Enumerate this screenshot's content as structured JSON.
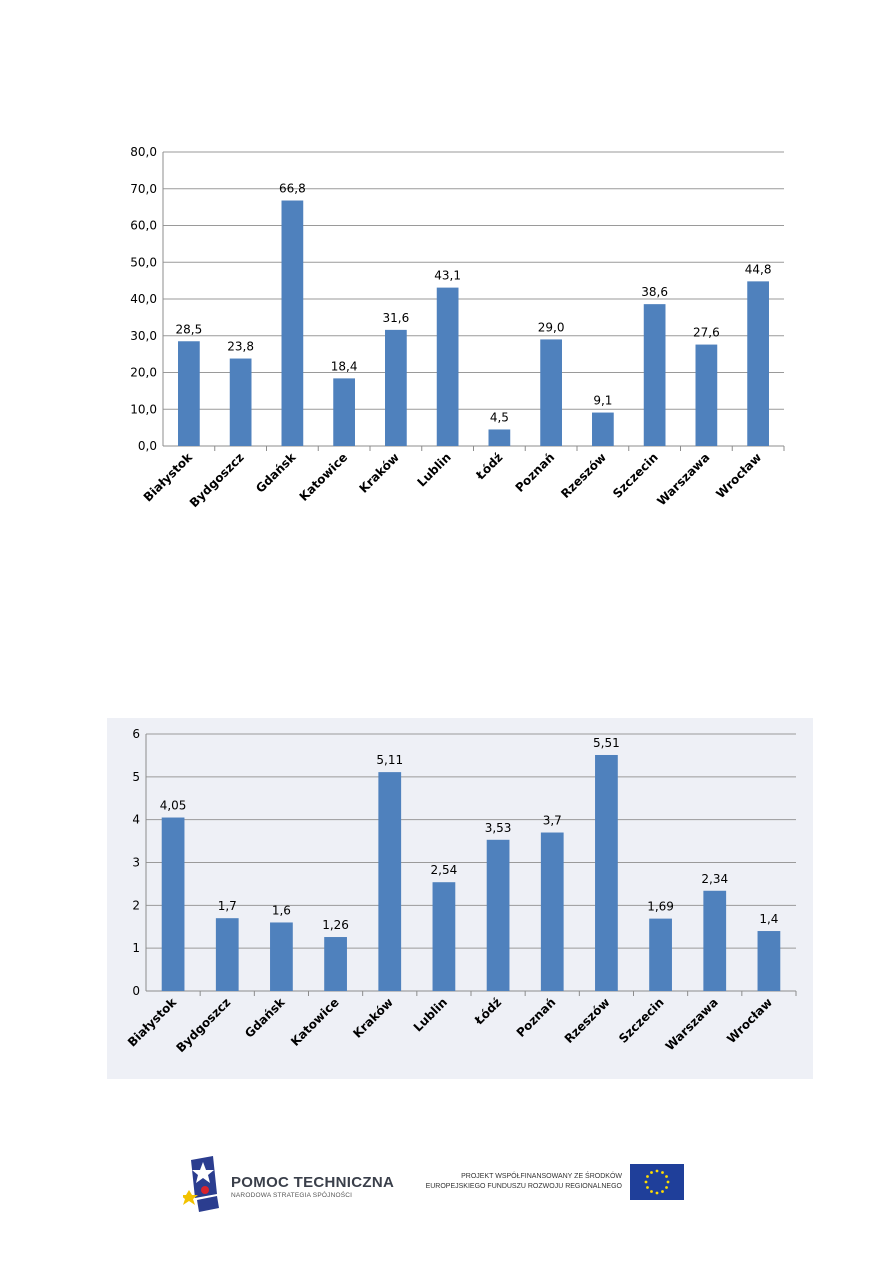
{
  "chart_data": [
    {
      "type": "bar",
      "categories": [
        "Białystok",
        "Bydgoszcz",
        "Gdańsk",
        "Katowice",
        "Kraków",
        "Lublin",
        "Łódź",
        "Poznań",
        "Rzeszów",
        "Szczecin",
        "Warszawa",
        "Wrocław"
      ],
      "values": [
        28.5,
        23.8,
        66.8,
        18.4,
        31.6,
        43.1,
        4.5,
        29.0,
        9.1,
        38.6,
        27.6,
        44.8
      ],
      "data_labels": [
        "28,5",
        "23,8",
        "66,8",
        "18,4",
        "31,6",
        "43,1",
        "4,5",
        "29,0",
        "9,1",
        "38,6",
        "27,6",
        "44,8"
      ],
      "ylim": [
        0,
        80
      ],
      "yticks": [
        "0,0",
        "10,0",
        "20,0",
        "30,0",
        "40,0",
        "50,0",
        "60,0",
        "70,0",
        "80,0"
      ],
      "grid": true,
      "bar_color": "#4f81bd",
      "title": "",
      "xlabel": "",
      "ylabel": ""
    },
    {
      "type": "bar",
      "categories": [
        "Białystok",
        "Bydgoszcz",
        "Gdańsk",
        "Katowice",
        "Kraków",
        "Lublin",
        "Łódź",
        "Poznań",
        "Rzeszów",
        "Szczecin",
        "Warszawa",
        "Wrocław"
      ],
      "values": [
        4.05,
        1.7,
        1.6,
        1.26,
        5.11,
        2.54,
        3.53,
        3.7,
        5.51,
        1.69,
        2.34,
        1.4
      ],
      "data_labels": [
        "4,05",
        "1,7",
        "1,6",
        "1,26",
        "5,11",
        "2,54",
        "3,53",
        "3,7",
        "5,51",
        "1,69",
        "2,34",
        "1,4"
      ],
      "ylim": [
        0,
        6
      ],
      "yticks": [
        "0",
        "1",
        "2",
        "3",
        "4",
        "5",
        "6"
      ],
      "grid": true,
      "bar_color": "#4f81bd",
      "title": "",
      "xlabel": "",
      "ylabel": ""
    }
  ],
  "footer": {
    "program_title": "POMOC TECHNICZNA",
    "program_subtitle": "NARODOWA STRATEGIA SPÓJNOŚCI",
    "cofinancing_line1": "PROJEKT WSPÓŁFINANSOWANY ZE ŚRODKÓW",
    "cofinancing_line2": "EUROPEJSKIEGO FUNDUSZU ROZWOJU REGIONALNEGO"
  },
  "colors": {
    "bar": "#4f81bd",
    "grid": "#9a9a9a",
    "eu_flag": "#1f3f9a",
    "eu_stars": "#ffdd00"
  }
}
